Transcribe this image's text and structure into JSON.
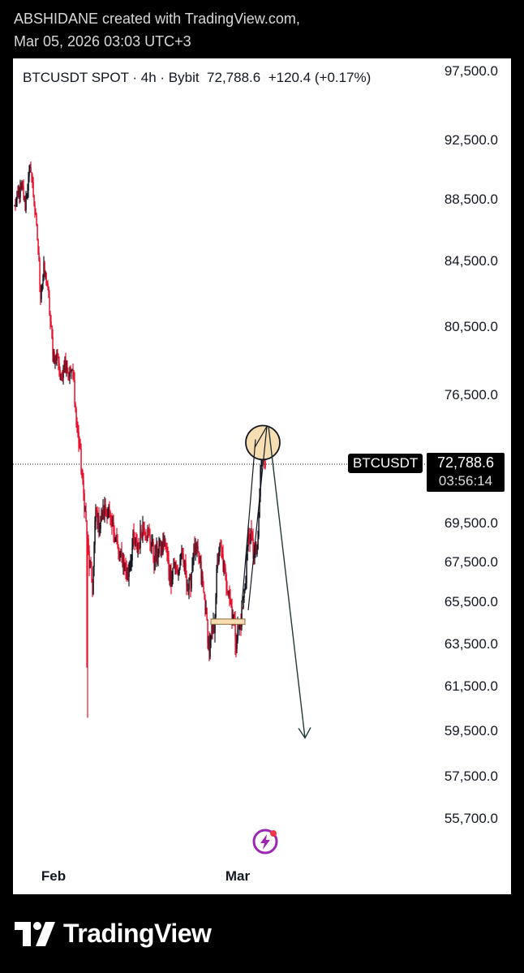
{
  "header": {
    "credit_line1": "ABSHIDANE created with TradingView.com,",
    "credit_line2": "Mar 05, 2026 03:03 UTC+3"
  },
  "ticker": {
    "title": "BTCUSDT SPOT · 4h · Bybit",
    "last": "72,788.6",
    "change": "+120.4 (+0.17%)"
  },
  "price_tag": {
    "symbol": "BTCUSDT",
    "price": "72,788.6",
    "countdown": "03:56:14"
  },
  "footer": {
    "logo_text": "TradingView"
  },
  "colors": {
    "up": "#131722",
    "down": "#e8112d",
    "circle_fill": "#f7deb2",
    "arrow": "#1f3a36"
  },
  "chart_data": {
    "type": "candlestick",
    "symbol": "BTCUSDT",
    "interval": "4h",
    "exchange": "Bybit",
    "y_ticks": [
      "97,500.0",
      "92,500.0",
      "88,500.0",
      "84,500.0",
      "80,500.0",
      "76,500.0",
      "69,500.0",
      "67,500.0",
      "65,500.0",
      "63,500.0",
      "61,500.0",
      "59,500.0",
      "57,500.0",
      "55,700.0"
    ],
    "x_ticks": [
      "Feb",
      "Mar"
    ],
    "current_price": 72788.6,
    "path": [
      [
        0,
        88000
      ],
      [
        4,
        88800
      ],
      [
        10,
        89200
      ],
      [
        13,
        88100
      ],
      [
        17,
        89800
      ],
      [
        20,
        90700
      ],
      [
        24,
        88300
      ],
      [
        28,
        86000
      ],
      [
        32,
        82500
      ],
      [
        36,
        84000
      ],
      [
        40,
        83200
      ],
      [
        44,
        80800
      ],
      [
        47,
        79200
      ],
      [
        50,
        78500
      ],
      [
        53,
        78900
      ],
      [
        57,
        77300
      ],
      [
        60,
        78300
      ],
      [
        63,
        78500
      ],
      [
        66,
        77800
      ],
      [
        70,
        77900
      ],
      [
        73,
        77200
      ],
      [
        76,
        75000
      ],
      [
        80,
        73800
      ],
      [
        83,
        72000
      ],
      [
        86,
        70600
      ],
      [
        89,
        69000
      ],
      [
        92,
        67400
      ],
      [
        96,
        66200
      ],
      [
        100,
        70300
      ],
      [
        104,
        69300
      ],
      [
        108,
        70000
      ],
      [
        112,
        70400
      ],
      [
        116,
        70100
      ],
      [
        119,
        69300
      ],
      [
        122,
        69200
      ],
      [
        125,
        68800
      ],
      [
        128,
        67800
      ],
      [
        131,
        67700
      ],
      [
        134,
        67600
      ],
      [
        137,
        67200
      ],
      [
        140,
        66900
      ],
      [
        143,
        67600
      ],
      [
        146,
        68600
      ],
      [
        149,
        68400
      ],
      [
        153,
        68300
      ],
      [
        157,
        69400
      ],
      [
        160,
        69300
      ],
      [
        163,
        69100
      ],
      [
        166,
        68700
      ],
      [
        169,
        68500
      ],
      [
        172,
        67500
      ],
      [
        175,
        67900
      ],
      [
        178,
        68300
      ],
      [
        181,
        68000
      ],
      [
        184,
        68600
      ],
      [
        187,
        68000
      ],
      [
        190,
        67200
      ],
      [
        193,
        66700
      ],
      [
        196,
        67500
      ],
      [
        199,
        67200
      ],
      [
        202,
        67000
      ],
      [
        205,
        67900
      ],
      [
        208,
        67400
      ],
      [
        211,
        67000
      ],
      [
        214,
        66200
      ],
      [
        217,
        66600
      ],
      [
        220,
        68000
      ],
      [
        223,
        68100
      ],
      [
        226,
        67800
      ],
      [
        229,
        67200
      ],
      [
        232,
        66200
      ],
      [
        235,
        65300
      ],
      [
        238,
        64000
      ],
      [
        240,
        63100
      ],
      [
        243,
        64000
      ],
      [
        246,
        64300
      ],
      [
        249,
        66800
      ],
      [
        252,
        68200
      ],
      [
        255,
        68000
      ],
      [
        258,
        67200
      ],
      [
        261,
        66400
      ],
      [
        264,
        66100
      ],
      [
        267,
        65300
      ],
      [
        270,
        64700
      ],
      [
        273,
        63700
      ],
      [
        276,
        64300
      ],
      [
        279,
        64700
      ],
      [
        282,
        65600
      ],
      [
        285,
        66800
      ],
      [
        288,
        69000
      ],
      [
        291,
        68800
      ],
      [
        294,
        68300
      ],
      [
        297,
        67800
      ],
      [
        300,
        68400
      ],
      [
        303,
        72300
      ],
      [
        306,
        73800
      ],
      [
        309,
        72800
      ]
    ],
    "drawings": {
      "support_zone": {
        "y_top": 64700,
        "y_bottom": 64450
      },
      "highlight_circle": {
        "price": 73950
      },
      "projection_target": 59200
    }
  }
}
